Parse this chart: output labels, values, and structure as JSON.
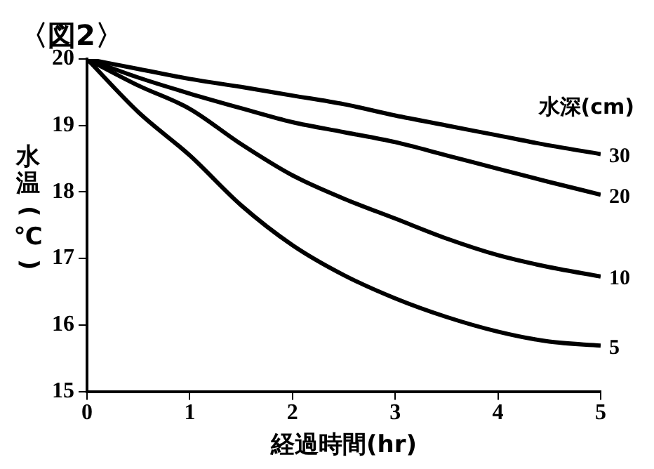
{
  "chart_data": {
    "type": "line",
    "title": "〈図2〉",
    "xlabel": "経過時間(hr)",
    "ylabel": "水温(℃)",
    "legend_title": "水深(cm)",
    "x": [
      0,
      0.5,
      1,
      1.5,
      2,
      2.5,
      3,
      3.5,
      4,
      4.5,
      5
    ],
    "xlim": [
      0,
      5
    ],
    "xticks": [
      0,
      1,
      2,
      3,
      4,
      5
    ],
    "ylim": [
      15,
      20
    ],
    "yticks": [
      15,
      16,
      17,
      18,
      19,
      20
    ],
    "grid": false,
    "legend": false,
    "marker": "none",
    "line_style": "solid",
    "series": [
      {
        "name": "30",
        "color": "#000000",
        "values": [
          20,
          19.85,
          19.7,
          19.58,
          19.45,
          19.32,
          19.15,
          19.0,
          18.85,
          18.7,
          18.57
        ]
      },
      {
        "name": "20",
        "color": "#000000",
        "values": [
          20,
          19.72,
          19.48,
          19.26,
          19.05,
          18.9,
          18.75,
          18.55,
          18.35,
          18.15,
          17.96
        ]
      },
      {
        "name": "10",
        "color": "#000000",
        "values": [
          20,
          19.6,
          19.25,
          18.72,
          18.25,
          17.9,
          17.6,
          17.3,
          17.05,
          16.87,
          16.73
        ]
      },
      {
        "name": "5",
        "color": "#000000",
        "values": [
          20,
          19.2,
          18.55,
          17.8,
          17.2,
          16.75,
          16.4,
          16.12,
          15.9,
          15.75,
          15.69
        ]
      }
    ]
  }
}
